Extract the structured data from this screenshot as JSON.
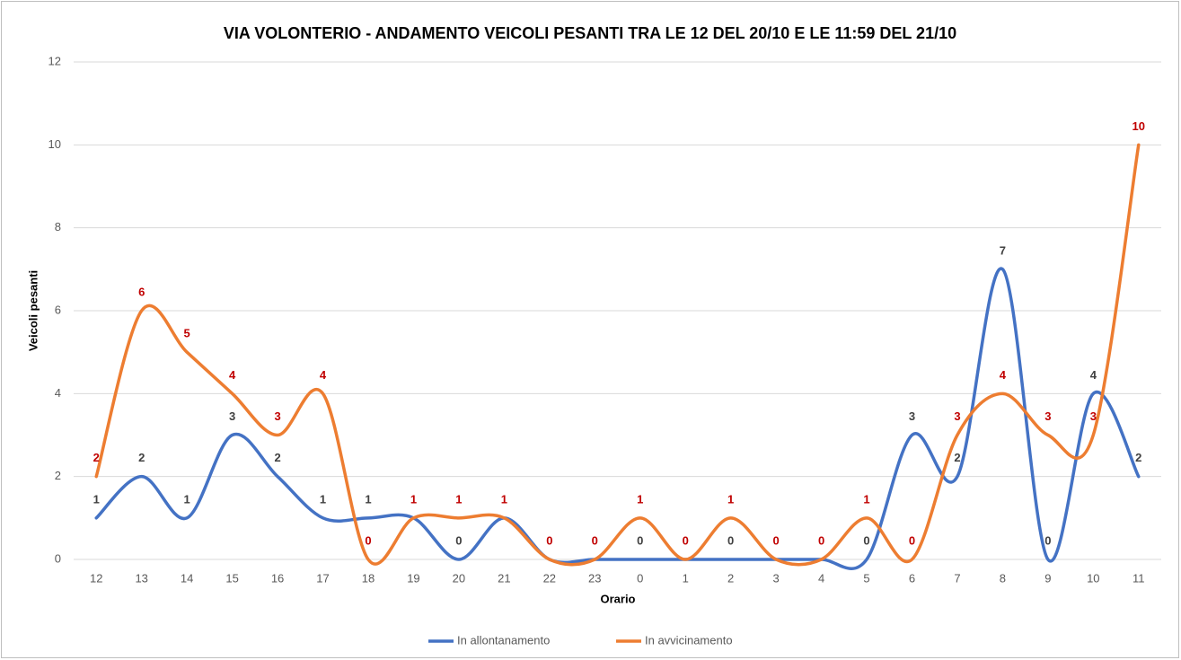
{
  "chart_data": {
    "type": "line",
    "title": "VIA VOLONTERIO - ANDAMENTO VEICOLI PESANTI TRA LE 12 DEL 20/10 E LE 11:59 DEL 21/10",
    "x_label": "Orario",
    "y_label": "Veicoli pesanti",
    "categories": [
      "12",
      "13",
      "14",
      "15",
      "16",
      "17",
      "18",
      "19",
      "20",
      "21",
      "22",
      "23",
      "0",
      "1",
      "2",
      "3",
      "4",
      "5",
      "6",
      "7",
      "8",
      "9",
      "10",
      "11"
    ],
    "series": [
      {
        "name": "In allontanamento",
        "color": "#4472c4",
        "label_color": "#404040",
        "values": [
          1,
          2,
          1,
          3,
          2,
          1,
          1,
          1,
          0,
          1,
          0,
          0,
          0,
          0,
          0,
          0,
          0,
          0,
          3,
          2,
          7,
          0,
          4,
          2
        ],
        "value_labels": [
          "1",
          "2",
          "1",
          "3",
          "2",
          "1",
          "1",
          null,
          "0",
          null,
          null,
          null,
          "0",
          null,
          "0",
          null,
          null,
          "0",
          "3",
          "2",
          "7",
          "0",
          "4",
          "2"
        ]
      },
      {
        "name": "In avvicinamento",
        "color": "#ed7d31",
        "label_color": "#c00000",
        "values": [
          2,
          6,
          5,
          4,
          3,
          4,
          0,
          1,
          1,
          1,
          0,
          0,
          1,
          0,
          1,
          0,
          0,
          1,
          0,
          3,
          4,
          3,
          3,
          10
        ],
        "value_labels": [
          "2",
          "6",
          "5",
          "4",
          "3",
          "4",
          "0",
          "1",
          "1",
          "1",
          "0",
          "0",
          "1",
          "0",
          "1",
          "0",
          "0",
          "1",
          "0",
          "3",
          "4",
          "3",
          "3",
          "10"
        ]
      }
    ],
    "ylim": [
      0,
      12
    ],
    "yticks": [
      0,
      2,
      4,
      6,
      8,
      10,
      12
    ],
    "grid": true,
    "smooth": true,
    "legend": "bottom"
  }
}
